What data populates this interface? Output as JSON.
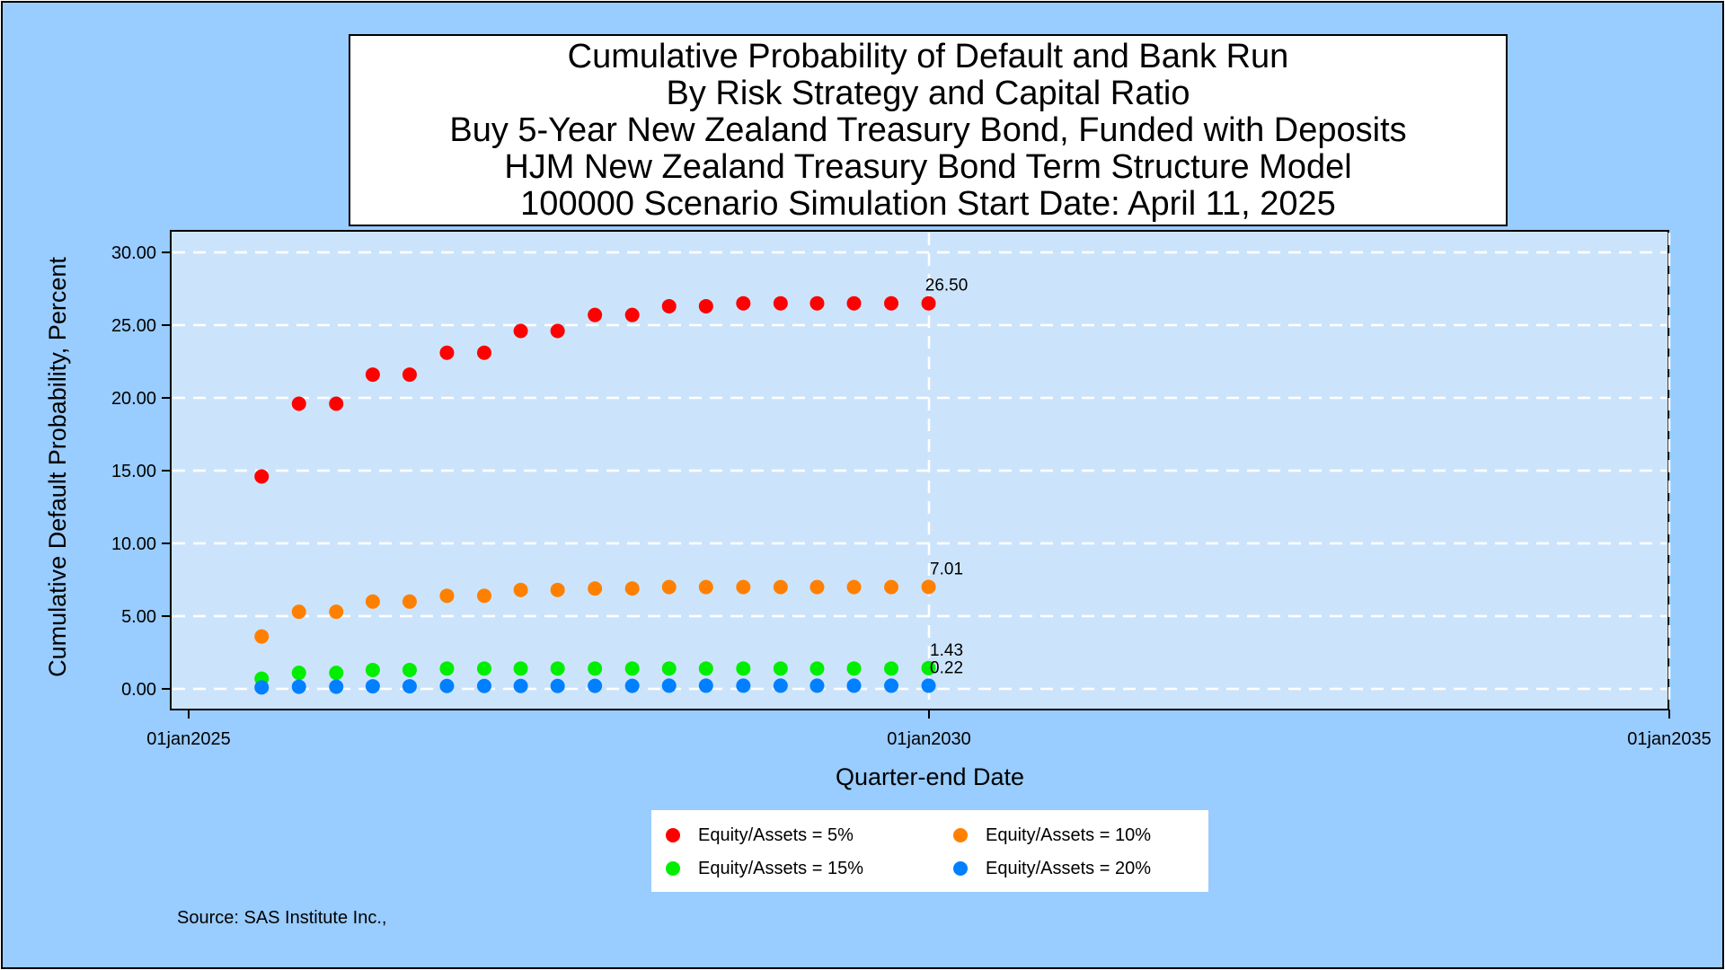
{
  "source_note": "Source: SAS Institute Inc.,",
  "colors": {
    "background": "#99ccff",
    "plot_area": "#cce4fb",
    "grid": "#ffffff"
  },
  "chart_data": {
    "type": "scatter",
    "title_lines": [
      "Cumulative Probability of Default and Bank Run",
      "By Risk Strategy and Capital Ratio",
      "Buy 5-Year New Zealand Treasury Bond, Funded with Deposits",
      "HJM New Zealand Treasury Bond Term Structure Model",
      "100000 Scenario Simulation Start Date: April 11, 2025"
    ],
    "xlabel": "Quarter-end Date",
    "ylabel": "Cumulative Default Probability, Percent",
    "xlim": [
      "2025-01-01",
      "2035-01-01"
    ],
    "ylim": [
      0,
      30
    ],
    "x_ticks": [
      "01jan2025",
      "01jan2030",
      "01jan2035"
    ],
    "y_ticks": [
      "0.00",
      "5.00",
      "10.00",
      "15.00",
      "20.00",
      "25.00",
      "30.00"
    ],
    "grid": true,
    "legend_position": "bottom",
    "x": [
      "2025-06-30",
      "2025-09-30",
      "2025-12-31",
      "2026-03-31",
      "2026-06-30",
      "2026-09-30",
      "2026-12-31",
      "2027-03-31",
      "2027-06-30",
      "2027-09-30",
      "2027-12-31",
      "2028-03-31",
      "2028-06-30",
      "2028-09-30",
      "2028-12-31",
      "2029-03-31",
      "2029-06-30",
      "2029-09-30",
      "2029-12-31"
    ],
    "series": [
      {
        "name": "Equity/Assets = 5%",
        "color": "#ff0000",
        "values": [
          14.6,
          19.6,
          19.6,
          21.6,
          21.6,
          23.1,
          23.1,
          24.6,
          24.6,
          25.7,
          25.7,
          26.3,
          26.3,
          26.5,
          26.5,
          26.5,
          26.5,
          26.5,
          26.5
        ],
        "end_label": "26.50"
      },
      {
        "name": "Equity/Assets = 10%",
        "color": "#ff8000",
        "values": [
          3.6,
          5.3,
          5.3,
          6.0,
          6.0,
          6.4,
          6.4,
          6.8,
          6.8,
          6.9,
          6.9,
          7.0,
          7.0,
          7.0,
          7.0,
          7.0,
          7.0,
          7.0,
          7.01
        ],
        "end_label": "7.01"
      },
      {
        "name": "Equity/Assets = 15%",
        "color": "#00ee00",
        "values": [
          0.7,
          1.1,
          1.1,
          1.3,
          1.3,
          1.4,
          1.4,
          1.4,
          1.4,
          1.4,
          1.4,
          1.4,
          1.4,
          1.4,
          1.4,
          1.4,
          1.4,
          1.4,
          1.43
        ],
        "end_label": "1.43"
      },
      {
        "name": "Equity/Assets = 20%",
        "color": "#0080ff",
        "values": [
          0.1,
          0.15,
          0.15,
          0.18,
          0.18,
          0.2,
          0.2,
          0.2,
          0.2,
          0.21,
          0.21,
          0.22,
          0.22,
          0.22,
          0.22,
          0.22,
          0.22,
          0.22,
          0.22
        ],
        "end_label": "0.22"
      }
    ]
  }
}
